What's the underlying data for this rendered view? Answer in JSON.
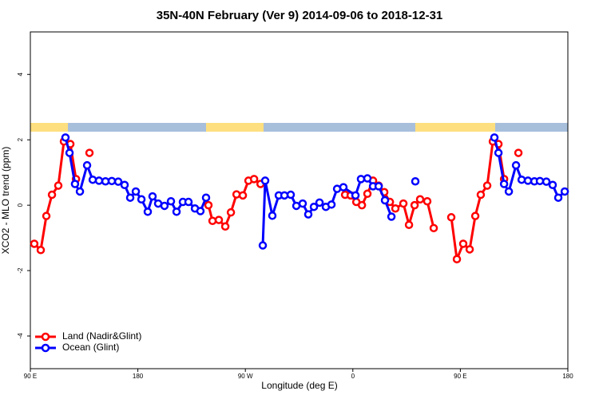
{
  "chart_data": {
    "type": "line",
    "title": "35N-40N February (Ver 9)   2014-09-06 to 2018-12-31",
    "x_label": "Longitude (deg E)",
    "y_label": "XCO2 - MLO trend (ppm)",
    "xlim": [
      90,
      540
    ],
    "xticks": [
      {
        "value": 90,
        "label": "90 E"
      },
      180,
      {
        "value": 270,
        "label": "90 W"
      },
      {
        "value": 360,
        "label": "0"
      },
      {
        "value": 450,
        "label": "90 E"
      },
      {
        "value": 540,
        "label": "180"
      }
    ],
    "ylim": [
      -5,
      5.3
    ],
    "yticks": [
      -4,
      -2,
      0,
      2,
      4
    ],
    "legend": "bottom-left",
    "series": [
      {
        "name": "Land (Nadir&Glint)",
        "color": "#ff0000",
        "x": [
          93.3,
          98.7,
          103.4,
          108.1,
          113.4,
          118.1,
          123.5,
          128.2,
          null,
          139.5,
          null,
          239.1,
          242.5,
          247.8,
          253.2,
          257.9,
          262.6,
          267.9,
          272.6,
          277.3,
          282.7,
          null,
          353.5,
          358.2,
          362.9,
          367.6,
          372.2,
          376.9,
          381.6,
          386.3,
          391.0,
          395.6,
          402.3,
          407.0,
          411.7,
          416.3,
          422.3,
          427.7,
          null,
          442.4,
          447.1,
          452.4,
          457.8,
          462.5,
          467.1,
          472.5,
          477.2,
          481.9,
          486.6,
          null,
          498.6
        ],
        "values": [
          -1.18,
          -1.37,
          -0.33,
          0.32,
          0.6,
          1.95,
          1.87,
          0.8,
          null,
          1.6,
          null,
          0.0,
          -0.48,
          -0.45,
          -0.65,
          -0.22,
          0.33,
          0.3,
          0.75,
          0.8,
          0.65,
          null,
          0.32,
          0.3,
          0.1,
          0.0,
          0.35,
          0.75,
          0.6,
          0.4,
          0.1,
          -0.1,
          0.05,
          -0.6,
          0.0,
          0.18,
          0.12,
          -0.7,
          null,
          -0.37,
          -1.65,
          -1.18,
          -1.35,
          -0.33,
          0.32,
          0.6,
          1.95,
          1.87,
          0.8,
          null,
          1.6
        ]
      },
      {
        "name": "Ocean (Glint)",
        "color": "#0000ff",
        "x": [
          119.4,
          122.8,
          127.4,
          131.5,
          137.5,
          142.2,
          147.5,
          152.9,
          158.2,
          163.6,
          168.9,
          173.6,
          178.3,
          183.0,
          188.3,
          192.3,
          197.0,
          202.3,
          207.7,
          212.4,
          217.7,
          222.4,
          227.8,
          232.4,
          237.1,
          null,
          284.6,
          286.6,
          292.6,
          298.0,
          302.7,
          308.0,
          312.7,
          318.0,
          322.7,
          327.4,
          332.1,
          337.4,
          342.1,
          346.8,
          352.1,
          362.2,
          366.8,
          372.2,
          376.9,
          381.6,
          386.9,
          392.3,
          null,
          412.3,
          null,
          478.5,
          481.9,
          486.6,
          490.6,
          496.6,
          501.3,
          506.6,
          512.0,
          516.6,
          522.0,
          527.3,
          532.0,
          537.4
        ],
        "values": [
          2.07,
          1.6,
          0.65,
          0.42,
          1.22,
          0.78,
          0.75,
          0.73,
          0.74,
          0.72,
          0.62,
          0.23,
          0.42,
          0.18,
          -0.2,
          0.27,
          0.05,
          -0.02,
          0.12,
          -0.2,
          0.1,
          0.1,
          -0.1,
          -0.18,
          0.23,
          null,
          -1.23,
          0.75,
          -0.32,
          0.3,
          0.3,
          0.32,
          -0.02,
          0.05,
          -0.28,
          -0.05,
          0.08,
          -0.05,
          0.02,
          0.5,
          0.55,
          0.3,
          0.8,
          0.82,
          0.58,
          0.58,
          0.15,
          -0.35,
          null,
          0.73,
          null,
          2.07,
          1.6,
          0.65,
          0.42,
          1.22,
          0.78,
          0.75,
          0.73,
          0.74,
          0.72,
          0.62,
          0.23,
          0.42
        ]
      }
    ]
  }
}
